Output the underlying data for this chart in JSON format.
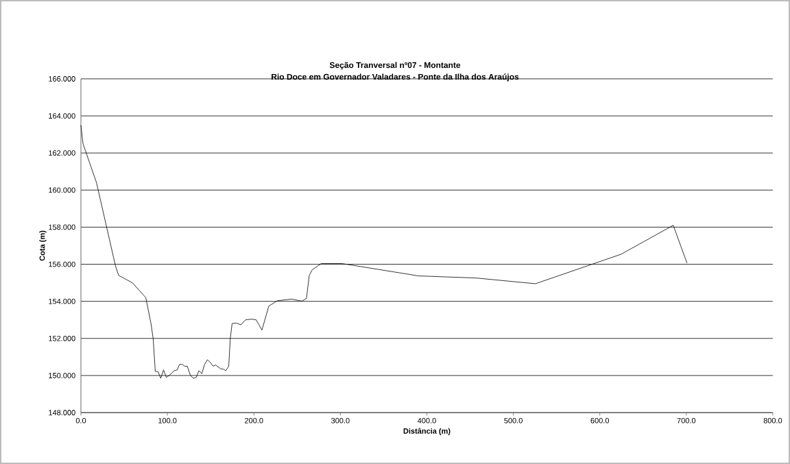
{
  "chart_data": {
    "type": "line",
    "title": "Seção Tranversal nº07 - Montante",
    "subtitle": "Rio Doce em Governador Valadares - Ponte da Ilha dos Araújos",
    "xlabel": "Distância (m)",
    "ylabel": "Cota (m)",
    "x": [
      0,
      2.4,
      18,
      40,
      43.6,
      59.5,
      75,
      81,
      83.5,
      86,
      89.3,
      92.3,
      95.5,
      98.7,
      102,
      108,
      111.3,
      114,
      117,
      120,
      123,
      126.7,
      130,
      133.3,
      136.5,
      139.7,
      143,
      146.2,
      149.7,
      152.9,
      155.7,
      161.6,
      164.3,
      167.5,
      170.9,
      172.7,
      174.8,
      179.6,
      184.9,
      190.2,
      197.4,
      202.6,
      209.3,
      217.2,
      227,
      243.6,
      255.5,
      260.8,
      264,
      267.4,
      277.9,
      301.7,
      390.5,
      456.3,
      525.6,
      624.6,
      684.9,
      700.8
    ],
    "series": [
      {
        "color": "#000000",
        "values": [
          163.5,
          162.5,
          160.4,
          155.9,
          155.4,
          155.0,
          154.2,
          152.8,
          152.0,
          150.22,
          150.2,
          149.85,
          150.3,
          149.9,
          150.0,
          150.26,
          150.3,
          150.6,
          150.6,
          150.5,
          150.5,
          150.0,
          149.85,
          149.9,
          150.26,
          150.1,
          150.6,
          150.85,
          150.7,
          150.5,
          150.57,
          150.36,
          150.35,
          150.26,
          150.5,
          152.0,
          152.8,
          152.83,
          152.73,
          153.0,
          153.04,
          153.0,
          152.45,
          153.74,
          154.03,
          154.12,
          154.01,
          154.16,
          155.39,
          155.7,
          156.04,
          156.04,
          155.37,
          155.26,
          154.95,
          156.54,
          158.1,
          156.06
        ]
      }
    ],
    "xlim": [
      0,
      800
    ],
    "ylim": [
      148,
      166
    ],
    "xticks": [
      {
        "value": 0,
        "label": "0.0"
      },
      {
        "value": 100,
        "label": "100.0"
      },
      {
        "value": 200,
        "label": "200.0"
      },
      {
        "value": 300,
        "label": "300.0"
      },
      {
        "value": 400,
        "label": "400.0"
      },
      {
        "value": 500,
        "label": "500.0"
      },
      {
        "value": 600,
        "label": "600.0"
      },
      {
        "value": 700,
        "label": "700.0"
      },
      {
        "value": 800,
        "label": "800.0"
      }
    ],
    "yticks": [
      {
        "value": 148,
        "label": "148.000"
      },
      {
        "value": 150,
        "label": "150.000"
      },
      {
        "value": 152,
        "label": "152.000"
      },
      {
        "value": 154,
        "label": "154.000"
      },
      {
        "value": 156,
        "label": "156.000"
      },
      {
        "value": 158,
        "label": "158.000"
      },
      {
        "value": 160,
        "label": "160.000"
      },
      {
        "value": 162,
        "label": "162.000"
      },
      {
        "value": 164,
        "label": "164.000"
      },
      {
        "value": 166,
        "label": "166.000"
      }
    ],
    "grid": "y",
    "marker": "none",
    "line_style": "solid"
  }
}
